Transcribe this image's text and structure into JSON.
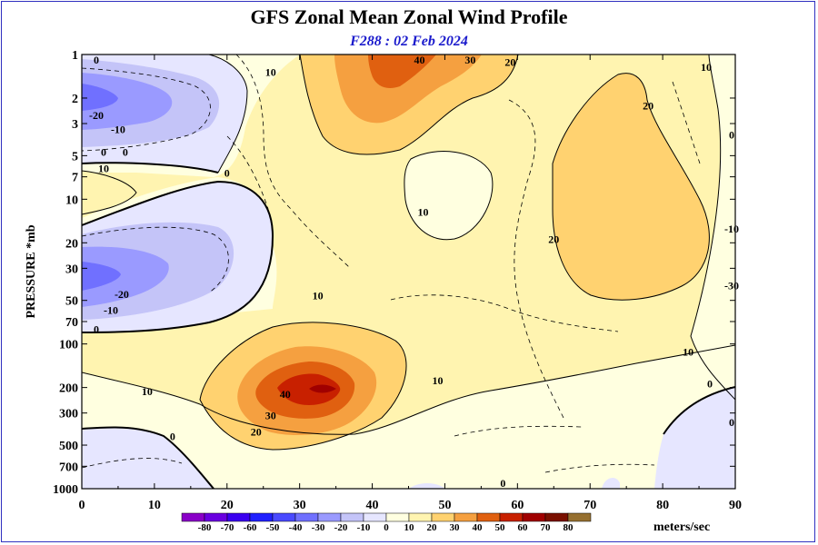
{
  "header": {
    "title": "GFS Zonal Mean Zonal Wind Profile",
    "subtitle": "F288 : 02 Feb 2024"
  },
  "chart_data": {
    "type": "contour",
    "ylabel": "PRESSURE *mb",
    "xlabel": "",
    "xlim": [
      0,
      90
    ],
    "ylim_pressure": [
      1000,
      1
    ],
    "y_scale": "log",
    "x_ticks": [
      "0",
      "10",
      "20",
      "30",
      "40",
      "50",
      "60",
      "70",
      "80",
      "90"
    ],
    "y_ticks": [
      "1",
      "2",
      "3",
      "5",
      "7",
      "10",
      "20",
      "30",
      "50",
      "70",
      "100",
      "200",
      "300",
      "500",
      "700",
      "1000"
    ],
    "colorbar": {
      "unit": "meters/sec",
      "levels": [
        "-80",
        "-70",
        "-60",
        "-50",
        "-40",
        "-30",
        "-20",
        "-10",
        "0",
        "10",
        "20",
        "30",
        "40",
        "50",
        "60",
        "70",
        "80"
      ],
      "colors": [
        "#8a00c8",
        "#6a00e0",
        "#3b00f0",
        "#2020ff",
        "#4a4aff",
        "#7070ff",
        "#9a9aff",
        "#c4c4f8",
        "#e6e6ff",
        "#ffffe0",
        "#fff4b0",
        "#ffd270",
        "#f5a040",
        "#e06010",
        "#c82000",
        "#a00000",
        "#7a1000",
        "#967030"
      ]
    },
    "contour_labels": [
      {
        "text": "0",
        "x": 2,
        "p": 1
      },
      {
        "text": "10",
        "x": 26,
        "p": 1.4
      },
      {
        "text": "-20",
        "x": 2,
        "p": 2.8
      },
      {
        "text": "-10",
        "x": 5,
        "p": 3.5
      },
      {
        "text": "0",
        "x": 3,
        "p": 5
      },
      {
        "text": "0",
        "x": 6,
        "p": 5
      },
      {
        "text": "10",
        "x": 3,
        "p": 6.5
      },
      {
        "text": "0",
        "x": 20,
        "p": 7
      },
      {
        "text": "-20",
        "x": 5.5,
        "p": 48
      },
      {
        "text": "-10",
        "x": 4,
        "p": 62
      },
      {
        "text": "0",
        "x": 2,
        "p": 84
      },
      {
        "text": "10",
        "x": 32.5,
        "p": 49
      },
      {
        "text": "10",
        "x": 47,
        "p": 13
      },
      {
        "text": "10",
        "x": 9,
        "p": 225
      },
      {
        "text": "40",
        "x": 28,
        "p": 235
      },
      {
        "text": "30",
        "x": 26,
        "p": 330
      },
      {
        "text": "20",
        "x": 24,
        "p": 430
      },
      {
        "text": "0",
        "x": 12.5,
        "p": 460
      },
      {
        "text": "10",
        "x": 49,
        "p": 190
      },
      {
        "text": "40",
        "x": 46.5,
        "p": 1.05
      },
      {
        "text": "30",
        "x": 53.5,
        "p": 1.15
      },
      {
        "text": "20",
        "x": 59,
        "p": 1.2
      },
      {
        "text": "20",
        "x": 78,
        "p": 2.4
      },
      {
        "text": "20",
        "x": 65,
        "p": 20
      },
      {
        "text": "10",
        "x": 86,
        "p": 1.3
      },
      {
        "text": "0",
        "x": 90,
        "p": 3.8
      },
      {
        "text": "-10",
        "x": 90,
        "p": 17
      },
      {
        "text": "-30",
        "x": 90,
        "p": 42
      },
      {
        "text": "10",
        "x": 83.5,
        "p": 120
      },
      {
        "text": "0",
        "x": 86.5,
        "p": 200
      },
      {
        "text": "0",
        "x": 90,
        "p": 370
      },
      {
        "text": "0",
        "x": 58,
        "p": 1000
      }
    ]
  }
}
